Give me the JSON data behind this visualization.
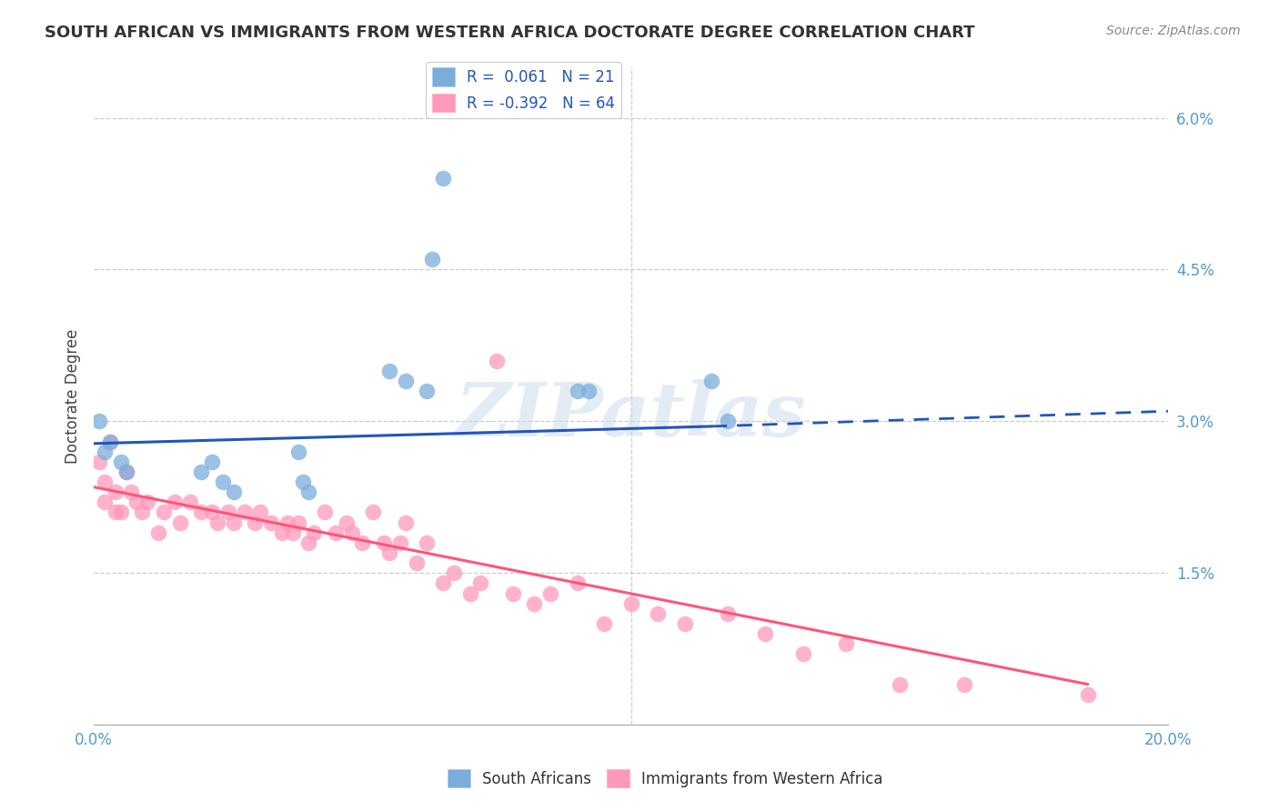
{
  "title": "SOUTH AFRICAN VS IMMIGRANTS FROM WESTERN AFRICA DOCTORATE DEGREE CORRELATION CHART",
  "source": "Source: ZipAtlas.com",
  "ylabel": "Doctorate Degree",
  "x_tick_positions": [
    0.0,
    0.05,
    0.1,
    0.15,
    0.2
  ],
  "x_tick_labels": [
    "0.0%",
    "",
    "",
    "",
    "20.0%"
  ],
  "y_ticks_right": [
    0.0,
    0.015,
    0.03,
    0.045,
    0.06
  ],
  "y_tick_labels_right": [
    "",
    "1.5%",
    "3.0%",
    "4.5%",
    "6.0%"
  ],
  "xlim": [
    0.0,
    0.2
  ],
  "ylim": [
    0.0,
    0.065
  ],
  "blue_color": "#7AADDC",
  "pink_color": "#FF99BB",
  "blue_line_color": "#2255BB",
  "pink_line_color": "#FF5577",
  "watermark": "ZIPatlas",
  "blue_scatter_x": [
    0.001,
    0.002,
    0.003,
    0.005,
    0.006,
    0.02,
    0.022,
    0.024,
    0.026,
    0.038,
    0.039,
    0.04,
    0.055,
    0.058,
    0.062,
    0.063,
    0.065,
    0.09,
    0.092,
    0.115,
    0.118
  ],
  "blue_scatter_y": [
    0.03,
    0.027,
    0.028,
    0.026,
    0.025,
    0.025,
    0.026,
    0.024,
    0.023,
    0.027,
    0.024,
    0.023,
    0.035,
    0.034,
    0.033,
    0.046,
    0.054,
    0.033,
    0.033,
    0.034,
    0.03
  ],
  "pink_scatter_x": [
    0.001,
    0.002,
    0.002,
    0.003,
    0.004,
    0.004,
    0.005,
    0.006,
    0.007,
    0.008,
    0.009,
    0.01,
    0.012,
    0.013,
    0.015,
    0.016,
    0.018,
    0.02,
    0.022,
    0.023,
    0.025,
    0.026,
    0.028,
    0.03,
    0.031,
    0.033,
    0.035,
    0.036,
    0.037,
    0.038,
    0.04,
    0.041,
    0.043,
    0.045,
    0.047,
    0.048,
    0.05,
    0.052,
    0.054,
    0.055,
    0.057,
    0.058,
    0.06,
    0.062,
    0.065,
    0.067,
    0.07,
    0.072,
    0.075,
    0.078,
    0.082,
    0.085,
    0.09,
    0.095,
    0.1,
    0.105,
    0.11,
    0.118,
    0.125,
    0.132,
    0.14,
    0.15,
    0.162,
    0.185
  ],
  "pink_scatter_y": [
    0.026,
    0.024,
    0.022,
    0.028,
    0.023,
    0.021,
    0.021,
    0.025,
    0.023,
    0.022,
    0.021,
    0.022,
    0.019,
    0.021,
    0.022,
    0.02,
    0.022,
    0.021,
    0.021,
    0.02,
    0.021,
    0.02,
    0.021,
    0.02,
    0.021,
    0.02,
    0.019,
    0.02,
    0.019,
    0.02,
    0.018,
    0.019,
    0.021,
    0.019,
    0.02,
    0.019,
    0.018,
    0.021,
    0.018,
    0.017,
    0.018,
    0.02,
    0.016,
    0.018,
    0.014,
    0.015,
    0.013,
    0.014,
    0.036,
    0.013,
    0.012,
    0.013,
    0.014,
    0.01,
    0.012,
    0.011,
    0.01,
    0.011,
    0.009,
    0.007,
    0.008,
    0.004,
    0.004,
    0.003
  ],
  "blue_line_x_start": 0.0,
  "blue_line_x_solid_end": 0.115,
  "blue_line_x_dashed_end": 0.2,
  "blue_line_y_start": 0.0278,
  "blue_line_y_solid_end": 0.0295,
  "blue_line_y_dashed_end": 0.031,
  "pink_line_x_start": 0.0,
  "pink_line_x_end": 0.185,
  "pink_line_y_start": 0.0235,
  "pink_line_y_end": 0.004
}
